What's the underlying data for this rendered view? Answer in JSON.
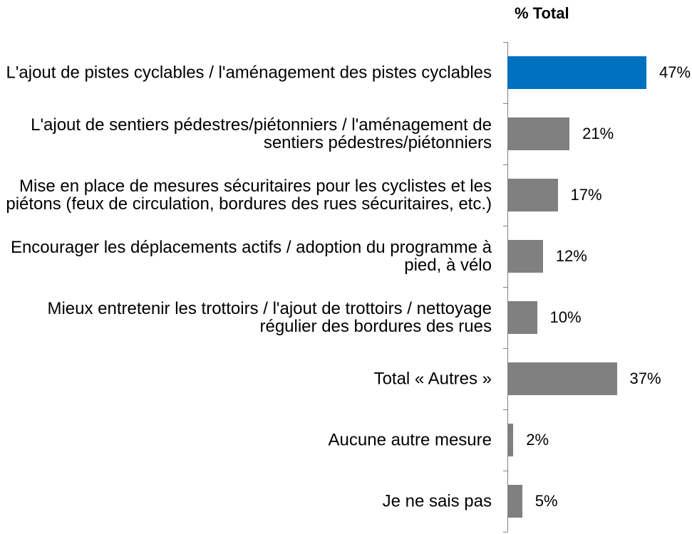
{
  "chart_data": {
    "type": "bar",
    "orientation": "horizontal",
    "header": "% Total",
    "categories": [
      "L'ajout de pistes cyclables / l'aménagement des pistes cyclables",
      "L'ajout de sentiers pédestres/piétonniers / l'aménagement de sentiers pédestres/piétonniers",
      "Mise en place de mesures sécuritaires pour les cyclistes et les piétons (feux de circulation, bordures des rues sécuritaires, etc.)",
      "Encourager les déplacements actifs / adoption du programme à pied, à vélo",
      "Mieux entretenir les trottoirs / l'ajout de trottoirs / nettoyage régulier des bordures des rues",
      "Total « Autres »",
      "Aucune autre mesure",
      "Je ne sais pas"
    ],
    "values": [
      47,
      21,
      17,
      12,
      10,
      37,
      2,
      5
    ],
    "value_labels": [
      "47%",
      "21%",
      "17%",
      "12%",
      "10%",
      "37%",
      "2%",
      "5%"
    ],
    "colors": [
      "#0070c0",
      "#808080",
      "#808080",
      "#808080",
      "#808080",
      "#808080",
      "#808080",
      "#808080"
    ]
  }
}
